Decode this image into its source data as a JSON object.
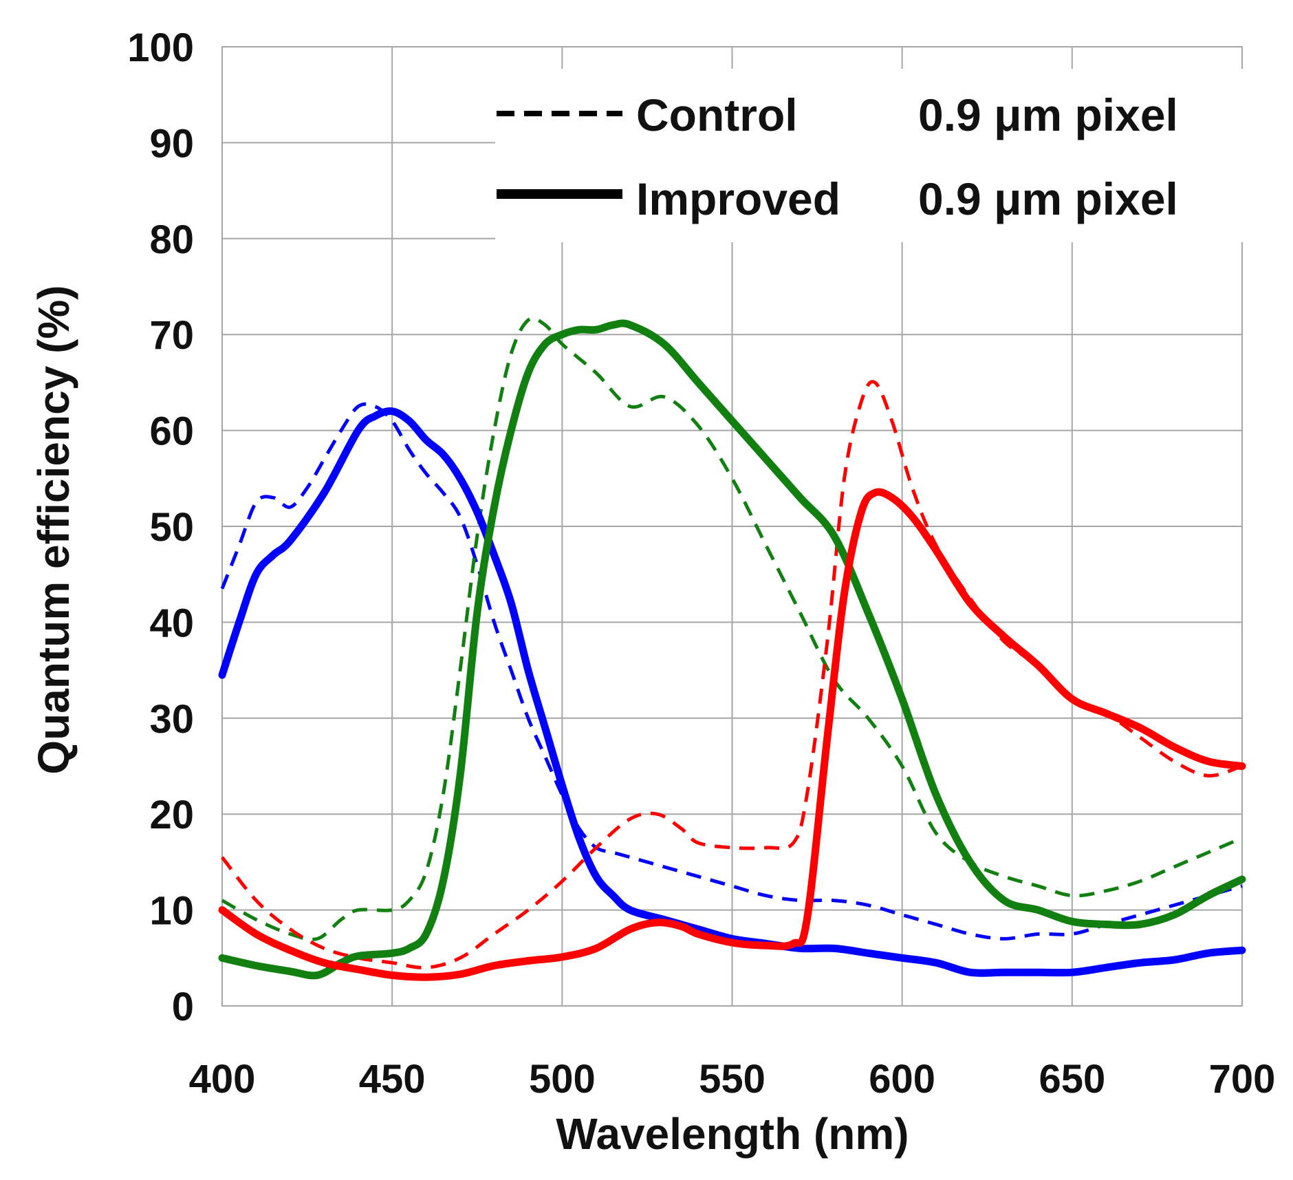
{
  "chart_data": {
    "type": "line",
    "title": "",
    "xlabel": "Wavelength (nm)",
    "ylabel": "Quantum efficiency (%)",
    "xlim": [
      400,
      700
    ],
    "ylim": [
      0,
      100
    ],
    "xticks": [
      "400",
      "450",
      "500",
      "550",
      "600",
      "650",
      "700"
    ],
    "yticks": [
      "0",
      "10",
      "20",
      "30",
      "40",
      "50",
      "60",
      "70",
      "80",
      "90",
      "100"
    ],
    "grid": true,
    "legend_position": "top-right",
    "legend": [
      {
        "style": "dashed",
        "name": "Control",
        "detail": "0.9 μm pixel"
      },
      {
        "style": "solid",
        "name": "Improved",
        "detail": "0.9 μm pixel"
      }
    ],
    "colors": {
      "blue": "#0000ff",
      "green": "#118011",
      "red": "#ff0000"
    },
    "series": [
      {
        "color": "blue",
        "style": "dashed",
        "points": [
          [
            400,
            43.5
          ],
          [
            405,
            48
          ],
          [
            410,
            52.5
          ],
          [
            415,
            53
          ],
          [
            420,
            52
          ],
          [
            425,
            54
          ],
          [
            430,
            57
          ],
          [
            435,
            60
          ],
          [
            440,
            62.5
          ],
          [
            445,
            62.5
          ],
          [
            450,
            61
          ],
          [
            455,
            58
          ],
          [
            460,
            55.5
          ],
          [
            465,
            53.5
          ],
          [
            470,
            51
          ],
          [
            475,
            46
          ],
          [
            480,
            40
          ],
          [
            485,
            35
          ],
          [
            490,
            30
          ],
          [
            495,
            26
          ],
          [
            500,
            22
          ],
          [
            505,
            18.5
          ],
          [
            510,
            16.5
          ],
          [
            515,
            16
          ],
          [
            520,
            15.5
          ],
          [
            530,
            14.5
          ],
          [
            540,
            13.5
          ],
          [
            550,
            12.5
          ],
          [
            560,
            11.5
          ],
          [
            570,
            11
          ],
          [
            580,
            11
          ],
          [
            590,
            10.5
          ],
          [
            600,
            9.5
          ],
          [
            610,
            8.5
          ],
          [
            620,
            7.5
          ],
          [
            630,
            7
          ],
          [
            640,
            7.5
          ],
          [
            650,
            7.5
          ],
          [
            660,
            8.5
          ],
          [
            670,
            9.5
          ],
          [
            680,
            10.5
          ],
          [
            690,
            11.5
          ],
          [
            700,
            12.5
          ]
        ]
      },
      {
        "color": "green",
        "style": "dashed",
        "points": [
          [
            400,
            11
          ],
          [
            410,
            9
          ],
          [
            420,
            7.5
          ],
          [
            428,
            7
          ],
          [
            435,
            9
          ],
          [
            440,
            10
          ],
          [
            450,
            10
          ],
          [
            455,
            11
          ],
          [
            460,
            14
          ],
          [
            465,
            22
          ],
          [
            470,
            35
          ],
          [
            475,
            49
          ],
          [
            480,
            60
          ],
          [
            485,
            68
          ],
          [
            490,
            71.5
          ],
          [
            495,
            71
          ],
          [
            500,
            69
          ],
          [
            510,
            66
          ],
          [
            520,
            62.5
          ],
          [
            530,
            63.5
          ],
          [
            540,
            60.5
          ],
          [
            550,
            55
          ],
          [
            560,
            48
          ],
          [
            570,
            41
          ],
          [
            580,
            34
          ],
          [
            590,
            30
          ],
          [
            600,
            25
          ],
          [
            610,
            18
          ],
          [
            620,
            15
          ],
          [
            630,
            13.5
          ],
          [
            640,
            12.5
          ],
          [
            650,
            11.5
          ],
          [
            660,
            12
          ],
          [
            670,
            13
          ],
          [
            680,
            14.5
          ],
          [
            690,
            16
          ],
          [
            700,
            17.5
          ]
        ]
      },
      {
        "color": "red",
        "style": "dashed",
        "points": [
          [
            400,
            15.5
          ],
          [
            410,
            11
          ],
          [
            420,
            8
          ],
          [
            430,
            6
          ],
          [
            440,
            5
          ],
          [
            450,
            4.5
          ],
          [
            460,
            4
          ],
          [
            470,
            5
          ],
          [
            480,
            7.5
          ],
          [
            490,
            10
          ],
          [
            500,
            13
          ],
          [
            510,
            16.5
          ],
          [
            520,
            19.5
          ],
          [
            528,
            20
          ],
          [
            535,
            18.5
          ],
          [
            540,
            17
          ],
          [
            550,
            16.5
          ],
          [
            560,
            16.5
          ],
          [
            568,
            17
          ],
          [
            572,
            22
          ],
          [
            578,
            38
          ],
          [
            583,
            55
          ],
          [
            588,
            63
          ],
          [
            592,
            65
          ],
          [
            597,
            61
          ],
          [
            603,
            54
          ],
          [
            610,
            48
          ],
          [
            620,
            42.5
          ],
          [
            630,
            38
          ],
          [
            640,
            35.5
          ],
          [
            650,
            32
          ],
          [
            660,
            30.5
          ],
          [
            670,
            28
          ],
          [
            680,
            25.5
          ],
          [
            690,
            24
          ],
          [
            700,
            25
          ]
        ]
      },
      {
        "color": "blue",
        "style": "solid",
        "points": [
          [
            400,
            34.5
          ],
          [
            405,
            40
          ],
          [
            410,
            45
          ],
          [
            415,
            47
          ],
          [
            420,
            48.5
          ],
          [
            430,
            53.5
          ],
          [
            440,
            60
          ],
          [
            445,
            61.5
          ],
          [
            450,
            62
          ],
          [
            455,
            61
          ],
          [
            460,
            59
          ],
          [
            465,
            57.5
          ],
          [
            470,
            55
          ],
          [
            475,
            51.5
          ],
          [
            480,
            47
          ],
          [
            485,
            42
          ],
          [
            490,
            35
          ],
          [
            495,
            29
          ],
          [
            500,
            23
          ],
          [
            505,
            17.5
          ],
          [
            510,
            13.5
          ],
          [
            515,
            11.5
          ],
          [
            520,
            10
          ],
          [
            530,
            9
          ],
          [
            540,
            8
          ],
          [
            550,
            7
          ],
          [
            560,
            6.5
          ],
          [
            570,
            6
          ],
          [
            580,
            6
          ],
          [
            590,
            5.5
          ],
          [
            600,
            5
          ],
          [
            610,
            4.5
          ],
          [
            620,
            3.5
          ],
          [
            630,
            3.5
          ],
          [
            640,
            3.5
          ],
          [
            650,
            3.5
          ],
          [
            660,
            4
          ],
          [
            670,
            4.5
          ],
          [
            680,
            4.8
          ],
          [
            690,
            5.5
          ],
          [
            700,
            5.8
          ]
        ]
      },
      {
        "color": "green",
        "style": "solid",
        "points": [
          [
            400,
            5
          ],
          [
            410,
            4.2
          ],
          [
            420,
            3.6
          ],
          [
            428,
            3.2
          ],
          [
            435,
            4.5
          ],
          [
            440,
            5.2
          ],
          [
            450,
            5.5
          ],
          [
            455,
            6
          ],
          [
            460,
            7.5
          ],
          [
            465,
            13
          ],
          [
            470,
            24
          ],
          [
            475,
            41
          ],
          [
            480,
            52
          ],
          [
            485,
            60
          ],
          [
            490,
            66
          ],
          [
            495,
            69
          ],
          [
            500,
            70
          ],
          [
            505,
            70.5
          ],
          [
            510,
            70.5
          ],
          [
            515,
            71
          ],
          [
            520,
            71
          ],
          [
            530,
            69
          ],
          [
            540,
            65
          ],
          [
            550,
            61
          ],
          [
            560,
            57
          ],
          [
            570,
            53
          ],
          [
            580,
            49
          ],
          [
            590,
            41
          ],
          [
            600,
            32
          ],
          [
            610,
            22
          ],
          [
            620,
            15
          ],
          [
            630,
            11
          ],
          [
            640,
            10
          ],
          [
            650,
            8.8
          ],
          [
            660,
            8.5
          ],
          [
            670,
            8.5
          ],
          [
            680,
            9.5
          ],
          [
            690,
            11.5
          ],
          [
            700,
            13.2
          ]
        ]
      },
      {
        "color": "red",
        "style": "solid",
        "points": [
          [
            400,
            10
          ],
          [
            410,
            7.5
          ],
          [
            420,
            5.8
          ],
          [
            430,
            4.5
          ],
          [
            440,
            3.8
          ],
          [
            450,
            3.2
          ],
          [
            460,
            3
          ],
          [
            470,
            3.3
          ],
          [
            480,
            4.2
          ],
          [
            490,
            4.7
          ],
          [
            500,
            5.1
          ],
          [
            510,
            6
          ],
          [
            520,
            8
          ],
          [
            528,
            8.7
          ],
          [
            535,
            8.3
          ],
          [
            540,
            7.5
          ],
          [
            550,
            6.6
          ],
          [
            560,
            6.3
          ],
          [
            568,
            6.5
          ],
          [
            572,
            9
          ],
          [
            578,
            28
          ],
          [
            583,
            43
          ],
          [
            588,
            51.5
          ],
          [
            592,
            53.5
          ],
          [
            597,
            53
          ],
          [
            603,
            51
          ],
          [
            610,
            47.5
          ],
          [
            620,
            42
          ],
          [
            630,
            38.5
          ],
          [
            640,
            35.5
          ],
          [
            650,
            32
          ],
          [
            660,
            30.5
          ],
          [
            670,
            29
          ],
          [
            680,
            27
          ],
          [
            690,
            25.5
          ],
          [
            700,
            25
          ]
        ]
      }
    ]
  }
}
